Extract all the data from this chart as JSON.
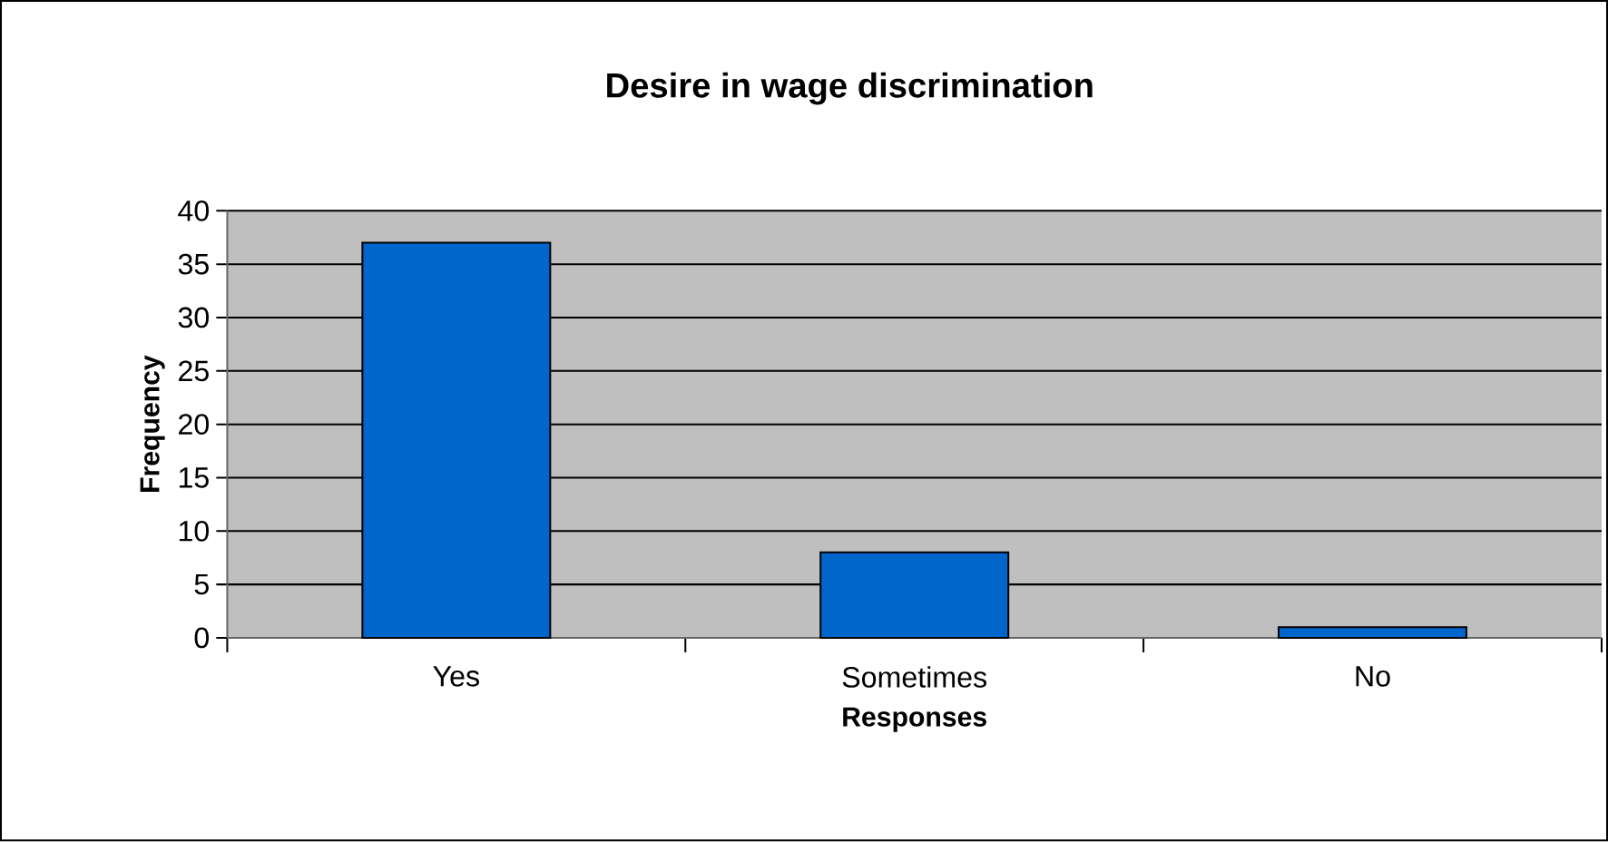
{
  "chart_data": {
    "type": "bar",
    "title": "Desire in  wage discrimination",
    "xlabel": "Responses",
    "ylabel": "Frequency",
    "categories": [
      "Yes",
      "Sometimes",
      "No"
    ],
    "values": [
      37,
      8,
      1
    ],
    "color": "#0066cc",
    "ylim": [
      0,
      40
    ],
    "yticks": [
      0,
      5,
      10,
      15,
      20,
      25,
      30,
      35,
      40
    ],
    "grid": true
  }
}
